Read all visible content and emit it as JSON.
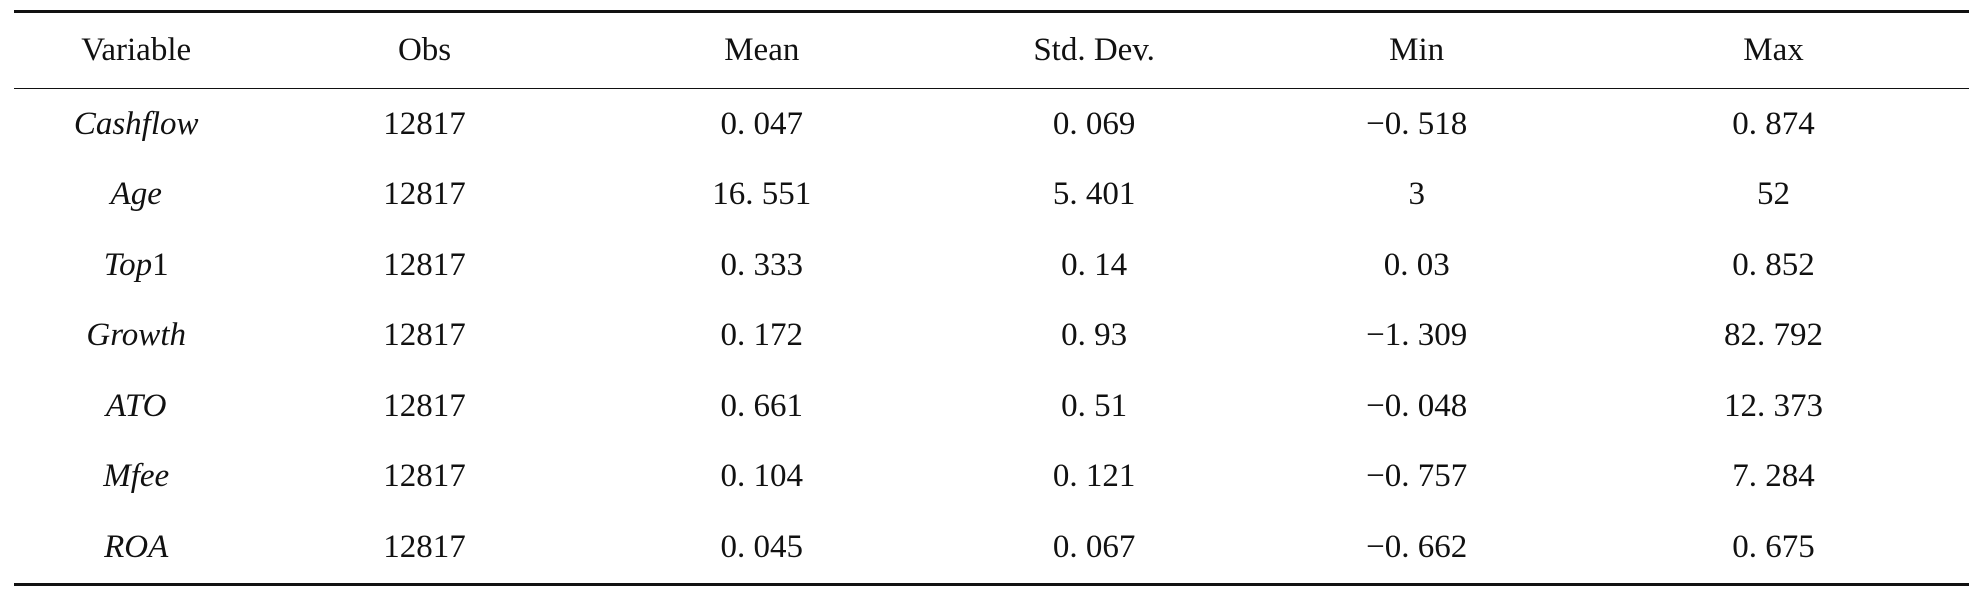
{
  "table": {
    "headers": [
      "Variable",
      "Obs",
      "Mean",
      "Std. Dev.",
      "Min",
      "Max"
    ],
    "rows": [
      {
        "variable_italic": "Cashflow",
        "variable_suffix": "",
        "obs": "12817",
        "mean": "0. 047",
        "sd": "0. 069",
        "min": "−0. 518",
        "max": "0. 874"
      },
      {
        "variable_italic": "Age",
        "variable_suffix": "",
        "obs": "12817",
        "mean": "16. 551",
        "sd": "5. 401",
        "min": "3",
        "max": "52"
      },
      {
        "variable_italic": "Top",
        "variable_suffix": "1",
        "obs": "12817",
        "mean": "0. 333",
        "sd": "0. 14",
        "min": "0. 03",
        "max": "0. 852"
      },
      {
        "variable_italic": "Growth",
        "variable_suffix": "",
        "obs": "12817",
        "mean": "0. 172",
        "sd": "0. 93",
        "min": "−1. 309",
        "max": "82. 792"
      },
      {
        "variable_italic": "ATO",
        "variable_suffix": "",
        "obs": "12817",
        "mean": "0. 661",
        "sd": "0. 51",
        "min": "−0. 048",
        "max": "12. 373"
      },
      {
        "variable_italic": "Mfee",
        "variable_suffix": "",
        "obs": "12817",
        "mean": "0. 104",
        "sd": "0. 121",
        "min": "−0. 757",
        "max": "7. 284"
      },
      {
        "variable_italic": "ROA",
        "variable_suffix": "",
        "obs": "12817",
        "mean": "0. 045",
        "sd": "0. 067",
        "min": "−0. 662",
        "max": "0. 675"
      }
    ]
  }
}
